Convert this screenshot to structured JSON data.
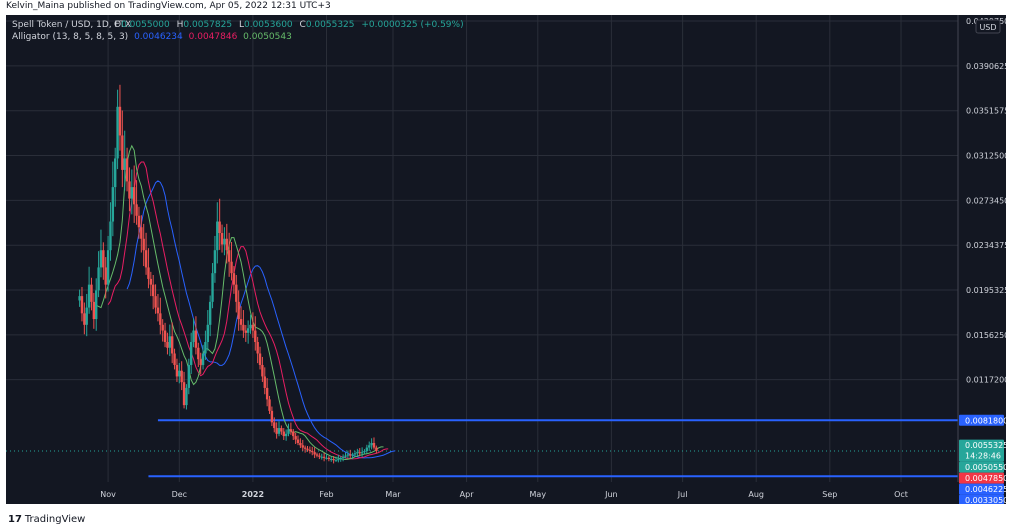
{
  "publisher_line": "Kelvin_Maina published on TradingView.com, Apr 05, 2022 12:31 UTC+3",
  "footer_logo": "TradingView",
  "legend": {
    "symbol": "Spell Token / USD, 1D, FTX",
    "ohlc": {
      "O": "0.0055000",
      "H": "0.0057825",
      "L": "0.0053600",
      "C": "0.0055325",
      "change": "+0.0000325 (+0.59%)"
    },
    "indicator_name": "Alligator (13, 8, 5, 8, 5, 3)",
    "indicator_values": [
      "0.0046234",
      "0.0047846",
      "0.0050543"
    ]
  },
  "colors": {
    "background": "#131722",
    "grid": "#2a2e39",
    "up": "#26a69a",
    "down": "#ef5350",
    "jaw": "#2962ff",
    "teeth": "#e91e63",
    "lips": "#66bb6a",
    "hline": "#2962ff"
  },
  "chart_data": {
    "type": "candlestick",
    "currency": "USD",
    "x_ticks": [
      "Nov",
      "Dec",
      "2022",
      "Feb",
      "Mar",
      "Apr",
      "May",
      "Jun",
      "Jul",
      "Aug",
      "Sep",
      "Oct"
    ],
    "y_ticks": [
      "0.0429750",
      "0.0390625",
      "0.0351575",
      "0.0312500",
      "0.0273450",
      "0.0234375",
      "0.0195325",
      "0.0156250",
      "0.0117200"
    ],
    "ylim": [
      0.0028,
      0.0435
    ],
    "horizontal_lines": [
      0.00818,
      0.0033
    ],
    "price_labels": [
      {
        "value": "0.0081800",
        "kind": "line"
      },
      {
        "value": "0.0055325",
        "sub": "14:28:46",
        "kind": "last"
      },
      {
        "value": "0.0050550",
        "kind": "lips"
      },
      {
        "value": "0.0047850",
        "kind": "teeth"
      },
      {
        "value": "0.0046225",
        "kind": "jaw"
      },
      {
        "value": "0.0033050",
        "kind": "line"
      }
    ],
    "date_range": [
      "2021-10-20",
      "2022-04-05"
    ],
    "close_series": [
      0.019,
      0.0175,
      0.0165,
      0.018,
      0.02,
      0.0185,
      0.017,
      0.0195,
      0.0215,
      0.023,
      0.0215,
      0.02,
      0.023,
      0.0255,
      0.0285,
      0.031,
      0.0355,
      0.033,
      0.03,
      0.031,
      0.029,
      0.0275,
      0.0285,
      0.027,
      0.026,
      0.025,
      0.024,
      0.023,
      0.0215,
      0.0205,
      0.02,
      0.019,
      0.018,
      0.0175,
      0.0165,
      0.016,
      0.015,
      0.0145,
      0.0155,
      0.014,
      0.013,
      0.012,
      0.0125,
      0.0115,
      0.0095,
      0.011,
      0.013,
      0.015,
      0.016,
      0.0145,
      0.0135,
      0.013,
      0.014,
      0.015,
      0.0165,
      0.0185,
      0.021,
      0.023,
      0.0255,
      0.0245,
      0.0235,
      0.024,
      0.023,
      0.022,
      0.021,
      0.02,
      0.0185,
      0.017,
      0.0165,
      0.016,
      0.0158,
      0.0162,
      0.0165,
      0.016,
      0.015,
      0.014,
      0.013,
      0.012,
      0.011,
      0.01,
      0.009,
      0.008,
      0.0075,
      0.007,
      0.0075,
      0.0072,
      0.0068,
      0.007,
      0.0074,
      0.0072,
      0.0068,
      0.0065,
      0.0062,
      0.006,
      0.0058,
      0.0057,
      0.0056,
      0.0055,
      0.0054,
      0.0052,
      0.0051,
      0.005,
      0.005,
      0.0049,
      0.0049,
      0.0048,
      0.0048,
      0.0047,
      0.0047,
      0.0048,
      0.0049,
      0.005,
      0.0051,
      0.0052,
      0.0051,
      0.0052,
      0.0053,
      0.0054,
      0.0053,
      0.0054,
      0.0055,
      0.0058,
      0.006,
      0.0062,
      0.0058,
      0.0055
    ]
  }
}
